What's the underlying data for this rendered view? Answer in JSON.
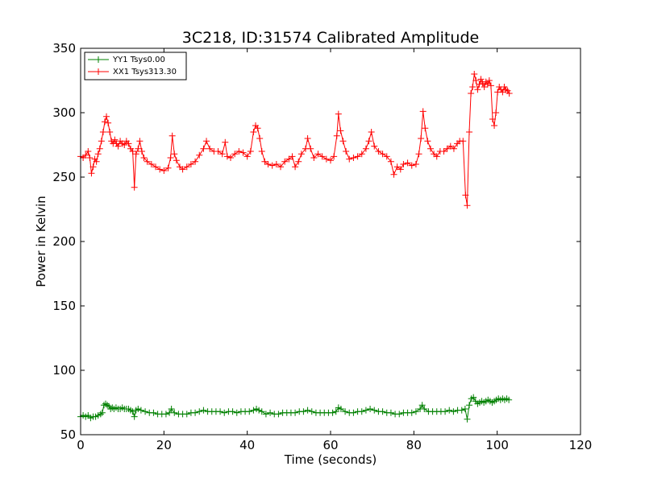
{
  "chart_data": {
    "type": "line",
    "title": "3C218, ID:31574 Calibrated Amplitude",
    "xlabel": "Time (seconds)",
    "ylabel": "Power in Kelvin",
    "xlim": [
      0,
      120
    ],
    "ylim": [
      50,
      350
    ],
    "xticks": [
      0,
      20,
      40,
      60,
      80,
      100,
      120
    ],
    "yticks": [
      50,
      100,
      150,
      200,
      250,
      300,
      350
    ],
    "grid": false,
    "legend_position": "upper-left",
    "marker": "+",
    "series": [
      {
        "name": "YY1 Tsys0.00",
        "color": "#008000",
        "points": [
          [
            0.0,
            64
          ],
          [
            0.6,
            65
          ],
          [
            1.2,
            64
          ],
          [
            1.8,
            65
          ],
          [
            2.4,
            63
          ],
          [
            3.0,
            64
          ],
          [
            3.6,
            64
          ],
          [
            4.2,
            65
          ],
          [
            4.8,
            66
          ],
          [
            5.2,
            67
          ],
          [
            5.6,
            73
          ],
          [
            6.0,
            74
          ],
          [
            6.4,
            73
          ],
          [
            6.8,
            72
          ],
          [
            7.2,
            70
          ],
          [
            7.6,
            71
          ],
          [
            8.0,
            70
          ],
          [
            8.5,
            71
          ],
          [
            9.0,
            70
          ],
          [
            9.5,
            70
          ],
          [
            10.0,
            71
          ],
          [
            10.5,
            70
          ],
          [
            11.0,
            70
          ],
          [
            11.5,
            70
          ],
          [
            12.0,
            69
          ],
          [
            12.5,
            68
          ],
          [
            12.9,
            64
          ],
          [
            13.3,
            69
          ],
          [
            13.8,
            70
          ],
          [
            14.5,
            69
          ],
          [
            15.5,
            68
          ],
          [
            16.5,
            67
          ],
          [
            17.5,
            67
          ],
          [
            18.5,
            66
          ],
          [
            19.5,
            66
          ],
          [
            20.5,
            66
          ],
          [
            21.3,
            67
          ],
          [
            21.8,
            70
          ],
          [
            22.5,
            67
          ],
          [
            23.5,
            66
          ],
          [
            24.5,
            66
          ],
          [
            25.5,
            66
          ],
          [
            26.5,
            67
          ],
          [
            27.5,
            67
          ],
          [
            28.5,
            68
          ],
          [
            29.5,
            69
          ],
          [
            30.5,
            68
          ],
          [
            31.5,
            68
          ],
          [
            32.5,
            68
          ],
          [
            33.5,
            68
          ],
          [
            34.5,
            67
          ],
          [
            35.5,
            68
          ],
          [
            36.5,
            68
          ],
          [
            37.5,
            67
          ],
          [
            38.5,
            68
          ],
          [
            39.5,
            68
          ],
          [
            40.5,
            68
          ],
          [
            41.5,
            69
          ],
          [
            42.2,
            70
          ],
          [
            42.8,
            69
          ],
          [
            43.5,
            68
          ],
          [
            44.5,
            66
          ],
          [
            45.5,
            67
          ],
          [
            46.5,
            66
          ],
          [
            47.5,
            66
          ],
          [
            48.5,
            67
          ],
          [
            49.5,
            67
          ],
          [
            50.5,
            67
          ],
          [
            51.5,
            67
          ],
          [
            52.5,
            68
          ],
          [
            53.5,
            68
          ],
          [
            54.5,
            69
          ],
          [
            55.5,
            68
          ],
          [
            56.5,
            67
          ],
          [
            57.5,
            67
          ],
          [
            58.5,
            67
          ],
          [
            59.5,
            67
          ],
          [
            60.5,
            67
          ],
          [
            61.3,
            68
          ],
          [
            61.9,
            71
          ],
          [
            62.5,
            70
          ],
          [
            63.5,
            68
          ],
          [
            64.5,
            67
          ],
          [
            65.5,
            67
          ],
          [
            66.5,
            68
          ],
          [
            67.5,
            68
          ],
          [
            68.5,
            69
          ],
          [
            69.5,
            70
          ],
          [
            70.5,
            69
          ],
          [
            71.5,
            68
          ],
          [
            72.5,
            68
          ],
          [
            73.5,
            67
          ],
          [
            74.5,
            67
          ],
          [
            75.5,
            66
          ],
          [
            76.5,
            66
          ],
          [
            77.5,
            67
          ],
          [
            78.5,
            67
          ],
          [
            79.5,
            67
          ],
          [
            80.5,
            68
          ],
          [
            81.5,
            70
          ],
          [
            82.0,
            73
          ],
          [
            82.5,
            70
          ],
          [
            83.5,
            68
          ],
          [
            84.5,
            68
          ],
          [
            85.5,
            68
          ],
          [
            86.5,
            68
          ],
          [
            87.5,
            68
          ],
          [
            88.5,
            69
          ],
          [
            89.5,
            68
          ],
          [
            90.5,
            69
          ],
          [
            91.5,
            69
          ],
          [
            92.3,
            70
          ],
          [
            92.8,
            62
          ],
          [
            93.3,
            73
          ],
          [
            93.8,
            78
          ],
          [
            94.3,
            79
          ],
          [
            94.8,
            76
          ],
          [
            95.3,
            74
          ],
          [
            95.8,
            75
          ],
          [
            96.3,
            76
          ],
          [
            96.8,
            75
          ],
          [
            97.3,
            76
          ],
          [
            97.8,
            77
          ],
          [
            98.3,
            76
          ],
          [
            98.8,
            75
          ],
          [
            99.3,
            76
          ],
          [
            99.8,
            77
          ],
          [
            100.3,
            78
          ],
          [
            100.8,
            77
          ],
          [
            101.3,
            78
          ],
          [
            101.8,
            77
          ],
          [
            102.3,
            78
          ],
          [
            102.8,
            77
          ]
        ]
      },
      {
        "name": "XX1 Tsys313.30",
        "color": "#ff0000",
        "points": [
          [
            0.0,
            266
          ],
          [
            0.6,
            265
          ],
          [
            1.2,
            267
          ],
          [
            1.8,
            270
          ],
          [
            2.2,
            265
          ],
          [
            2.6,
            253
          ],
          [
            3.0,
            258
          ],
          [
            3.4,
            264
          ],
          [
            3.8,
            262
          ],
          [
            4.2,
            268
          ],
          [
            4.6,
            272
          ],
          [
            5.0,
            278
          ],
          [
            5.4,
            285
          ],
          [
            5.8,
            293
          ],
          [
            6.2,
            297
          ],
          [
            6.6,
            292
          ],
          [
            7.0,
            285
          ],
          [
            7.4,
            278
          ],
          [
            7.8,
            276
          ],
          [
            8.2,
            279
          ],
          [
            8.6,
            276
          ],
          [
            9.0,
            274
          ],
          [
            9.5,
            278
          ],
          [
            10.0,
            276
          ],
          [
            10.5,
            275
          ],
          [
            11.0,
            278
          ],
          [
            11.5,
            276
          ],
          [
            12.0,
            272
          ],
          [
            12.5,
            270
          ],
          [
            12.9,
            242
          ],
          [
            13.3,
            268
          ],
          [
            13.8,
            272
          ],
          [
            14.2,
            278
          ],
          [
            14.7,
            270
          ],
          [
            15.2,
            265
          ],
          [
            16.0,
            262
          ],
          [
            17.0,
            260
          ],
          [
            18.0,
            258
          ],
          [
            19.0,
            256
          ],
          [
            20.0,
            255
          ],
          [
            21.0,
            257
          ],
          [
            21.6,
            265
          ],
          [
            22.0,
            282
          ],
          [
            22.5,
            268
          ],
          [
            23.0,
            263
          ],
          [
            23.8,
            258
          ],
          [
            24.5,
            256
          ],
          [
            25.5,
            258
          ],
          [
            26.5,
            260
          ],
          [
            27.5,
            262
          ],
          [
            28.5,
            267
          ],
          [
            29.5,
            272
          ],
          [
            30.2,
            278
          ],
          [
            31.0,
            272
          ],
          [
            32.0,
            270
          ],
          [
            33.0,
            270
          ],
          [
            34.0,
            268
          ],
          [
            34.7,
            277
          ],
          [
            35.2,
            266
          ],
          [
            36.0,
            265
          ],
          [
            37.0,
            268
          ],
          [
            38.0,
            270
          ],
          [
            39.0,
            269
          ],
          [
            40.0,
            266
          ],
          [
            40.8,
            270
          ],
          [
            41.5,
            285
          ],
          [
            42.0,
            290
          ],
          [
            42.5,
            288
          ],
          [
            43.0,
            280
          ],
          [
            43.5,
            270
          ],
          [
            44.2,
            262
          ],
          [
            45.0,
            260
          ],
          [
            46.0,
            259
          ],
          [
            47.0,
            260
          ],
          [
            48.0,
            258
          ],
          [
            49.0,
            262
          ],
          [
            50.0,
            264
          ],
          [
            50.8,
            266
          ],
          [
            51.5,
            258
          ],
          [
            52.3,
            262
          ],
          [
            53.0,
            268
          ],
          [
            54.0,
            272
          ],
          [
            54.5,
            280
          ],
          [
            55.2,
            272
          ],
          [
            56.0,
            265
          ],
          [
            57.0,
            268
          ],
          [
            58.0,
            266
          ],
          [
            59.0,
            264
          ],
          [
            60.0,
            263
          ],
          [
            60.8,
            266
          ],
          [
            61.5,
            282
          ],
          [
            61.9,
            299
          ],
          [
            62.4,
            286
          ],
          [
            63.0,
            278
          ],
          [
            63.7,
            270
          ],
          [
            64.5,
            264
          ],
          [
            65.5,
            265
          ],
          [
            66.5,
            266
          ],
          [
            67.5,
            268
          ],
          [
            68.5,
            272
          ],
          [
            69.2,
            278
          ],
          [
            69.8,
            285
          ],
          [
            70.5,
            274
          ],
          [
            71.5,
            270
          ],
          [
            72.5,
            268
          ],
          [
            73.5,
            266
          ],
          [
            74.5,
            262
          ],
          [
            75.2,
            252
          ],
          [
            76.0,
            258
          ],
          [
            76.8,
            256
          ],
          [
            77.5,
            260
          ],
          [
            78.5,
            261
          ],
          [
            79.5,
            259
          ],
          [
            80.5,
            260
          ],
          [
            81.2,
            268
          ],
          [
            81.7,
            280
          ],
          [
            82.2,
            301
          ],
          [
            82.7,
            288
          ],
          [
            83.3,
            278
          ],
          [
            84.0,
            272
          ],
          [
            84.8,
            268
          ],
          [
            85.5,
            266
          ],
          [
            86.3,
            270
          ],
          [
            87.2,
            270
          ],
          [
            88.0,
            272
          ],
          [
            88.8,
            274
          ],
          [
            89.6,
            272
          ],
          [
            90.4,
            276
          ],
          [
            91.0,
            278
          ],
          [
            91.8,
            278
          ],
          [
            92.4,
            236
          ],
          [
            92.8,
            228
          ],
          [
            93.3,
            285
          ],
          [
            93.7,
            315
          ],
          [
            94.1,
            320
          ],
          [
            94.5,
            330
          ],
          [
            94.9,
            325
          ],
          [
            95.3,
            318
          ],
          [
            95.7,
            322
          ],
          [
            96.1,
            326
          ],
          [
            96.5,
            323
          ],
          [
            96.9,
            320
          ],
          [
            97.3,
            324
          ],
          [
            97.7,
            322
          ],
          [
            98.1,
            325
          ],
          [
            98.5,
            321
          ],
          [
            98.9,
            295
          ],
          [
            99.3,
            290
          ],
          [
            99.7,
            300
          ],
          [
            100.1,
            316
          ],
          [
            100.5,
            320
          ],
          [
            100.9,
            318
          ],
          [
            101.3,
            316
          ],
          [
            101.7,
            320
          ],
          [
            102.1,
            318
          ],
          [
            102.5,
            317
          ],
          [
            102.9,
            315
          ]
        ]
      }
    ]
  }
}
